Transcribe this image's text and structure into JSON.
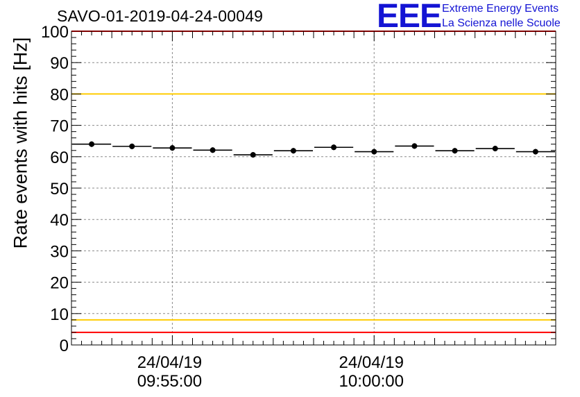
{
  "title": "SAVO-01-2019-04-24-00049",
  "logo": {
    "mark": "EEE",
    "line1": "Extreme Energy Events",
    "line2": "La Scienza nelle Scuole",
    "color": "#1414d4"
  },
  "chart_data": {
    "type": "scatter",
    "title": "SAVO-01-2019-04-24-00049",
    "ylabel": "Rate events with hits [Hz]",
    "xlabel": "",
    "ylim": [
      0,
      100
    ],
    "y_ticks": [
      0,
      10,
      20,
      30,
      40,
      50,
      60,
      70,
      80,
      90,
      100
    ],
    "x_tick_labels": [
      {
        "date": "24/04/19",
        "time": "09:55:00",
        "seconds": 150
      },
      {
        "date": "24/04/19",
        "time": "10:00:00",
        "seconds": 450
      }
    ],
    "x_range_seconds": [
      0,
      720
    ],
    "grid": true,
    "series": [
      {
        "name": "Rate",
        "bin_width_seconds": 60,
        "x": [
          30,
          90,
          150,
          210,
          270,
          330,
          390,
          450,
          510,
          570,
          630,
          690
        ],
        "values": [
          64.0,
          63.3,
          62.8,
          62.1,
          60.6,
          61.9,
          63.0,
          61.6,
          63.4,
          61.9,
          62.6,
          61.6
        ]
      }
    ],
    "reference_lines": [
      {
        "y": 100,
        "color": "#ff0000"
      },
      {
        "y": 80,
        "color": "#ffcc00"
      },
      {
        "y": 8,
        "color": "#ffcc00"
      },
      {
        "y": 4,
        "color": "#ff0000"
      }
    ]
  }
}
